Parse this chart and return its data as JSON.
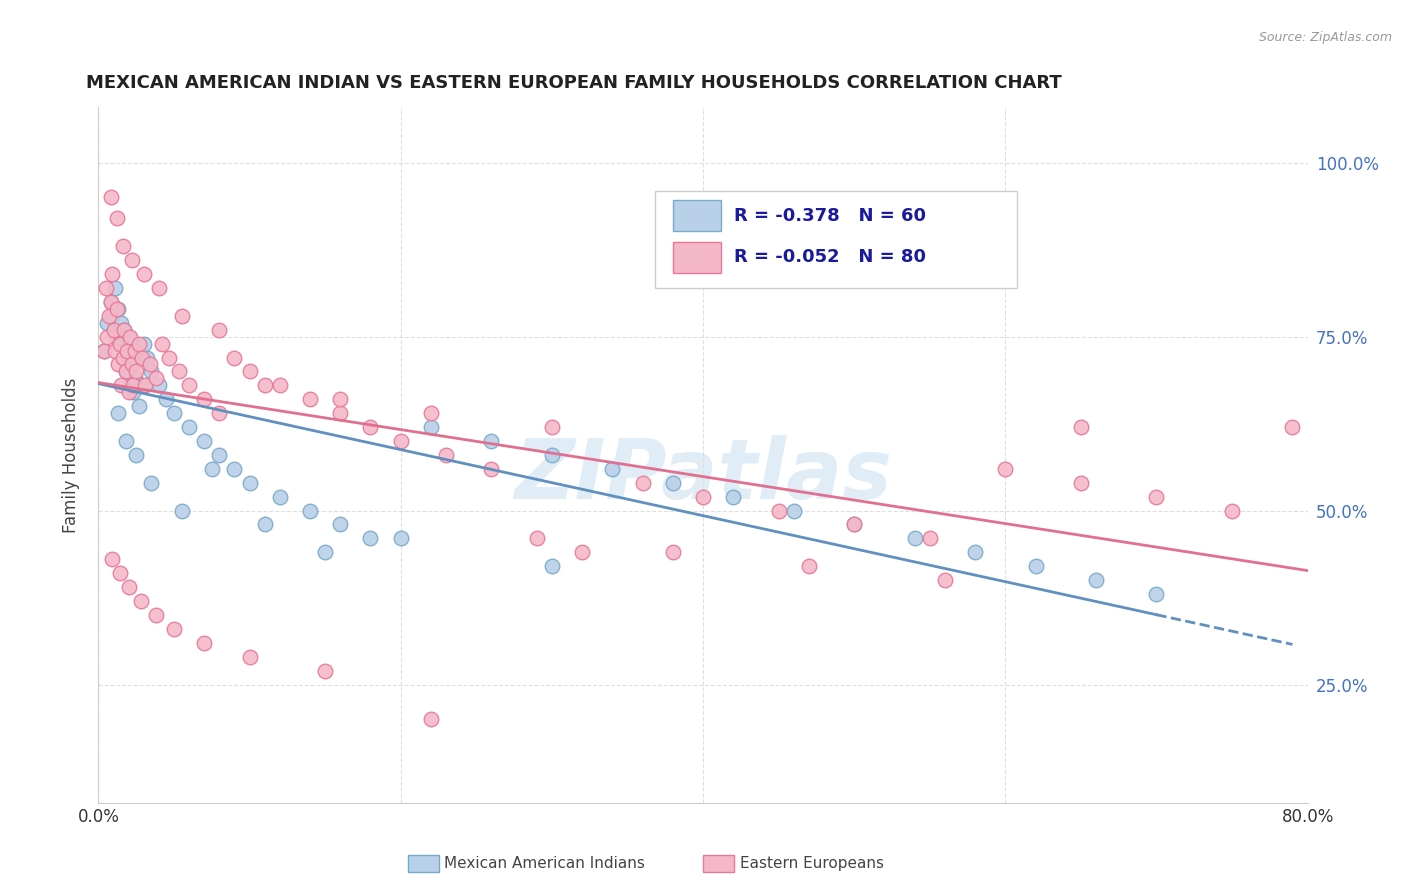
{
  "title": "MEXICAN AMERICAN INDIAN VS EASTERN EUROPEAN FAMILY HOUSEHOLDS CORRELATION CHART",
  "source": "Source: ZipAtlas.com",
  "ylabel": "Family Households",
  "legend_blue_R": "R = -0.378",
  "legend_blue_N": "N = 60",
  "legend_pink_R": "R = -0.052",
  "legend_pink_N": "N = 80",
  "legend_blue_label": "Mexican American Indians",
  "legend_pink_label": "Eastern Europeans",
  "blue_fill": "#b8d0e8",
  "blue_edge": "#7aaaca",
  "pink_fill": "#f4b8c8",
  "pink_edge": "#e87898",
  "blue_line": "#6090c0",
  "pink_line": "#e07090",
  "right_axis_color": "#4472c4",
  "watermark": "ZIPatlas",
  "watermark_color": "#cce0f0",
  "grid_color": "#d8d8d8",
  "title_color": "#222222",
  "source_color": "#999999",
  "xlim": [
    0.0,
    0.8
  ],
  "ylim": [
    0.08,
    1.08
  ],
  "blue_x": [
    0.004,
    0.006,
    0.008,
    0.009,
    0.01,
    0.011,
    0.012,
    0.013,
    0.014,
    0.015,
    0.016,
    0.017,
    0.018,
    0.019,
    0.02,
    0.021,
    0.022,
    0.023,
    0.024,
    0.025,
    0.027,
    0.028,
    0.03,
    0.032,
    0.035,
    0.04,
    0.045,
    0.05,
    0.06,
    0.07,
    0.08,
    0.09,
    0.1,
    0.12,
    0.14,
    0.16,
    0.18,
    0.22,
    0.26,
    0.3,
    0.34,
    0.38,
    0.42,
    0.46,
    0.5,
    0.54,
    0.58,
    0.62,
    0.66,
    0.7,
    0.013,
    0.018,
    0.025,
    0.035,
    0.055,
    0.075,
    0.11,
    0.15,
    0.2,
    0.3
  ],
  "blue_y": [
    0.73,
    0.77,
    0.8,
    0.78,
    0.76,
    0.82,
    0.75,
    0.79,
    0.74,
    0.77,
    0.72,
    0.76,
    0.7,
    0.73,
    0.75,
    0.68,
    0.71,
    0.67,
    0.69,
    0.72,
    0.65,
    0.68,
    0.74,
    0.72,
    0.7,
    0.68,
    0.66,
    0.64,
    0.62,
    0.6,
    0.58,
    0.56,
    0.54,
    0.52,
    0.5,
    0.48,
    0.46,
    0.62,
    0.6,
    0.58,
    0.56,
    0.54,
    0.52,
    0.5,
    0.48,
    0.46,
    0.44,
    0.42,
    0.4,
    0.38,
    0.64,
    0.6,
    0.58,
    0.54,
    0.5,
    0.56,
    0.48,
    0.44,
    0.46,
    0.42
  ],
  "pink_x": [
    0.004,
    0.005,
    0.006,
    0.007,
    0.008,
    0.009,
    0.01,
    0.011,
    0.012,
    0.013,
    0.014,
    0.015,
    0.016,
    0.017,
    0.018,
    0.019,
    0.02,
    0.021,
    0.022,
    0.023,
    0.024,
    0.025,
    0.027,
    0.029,
    0.031,
    0.034,
    0.038,
    0.042,
    0.047,
    0.053,
    0.06,
    0.07,
    0.08,
    0.09,
    0.1,
    0.12,
    0.14,
    0.16,
    0.18,
    0.2,
    0.23,
    0.26,
    0.29,
    0.32,
    0.36,
    0.4,
    0.45,
    0.5,
    0.55,
    0.6,
    0.65,
    0.7,
    0.75,
    0.79,
    0.008,
    0.012,
    0.016,
    0.022,
    0.03,
    0.04,
    0.055,
    0.08,
    0.11,
    0.16,
    0.22,
    0.3,
    0.38,
    0.47,
    0.56,
    0.65,
    0.009,
    0.014,
    0.02,
    0.028,
    0.038,
    0.05,
    0.07,
    0.1,
    0.15,
    0.22
  ],
  "pink_y": [
    0.73,
    0.82,
    0.75,
    0.78,
    0.8,
    0.84,
    0.76,
    0.73,
    0.79,
    0.71,
    0.74,
    0.68,
    0.72,
    0.76,
    0.7,
    0.73,
    0.67,
    0.75,
    0.71,
    0.68,
    0.73,
    0.7,
    0.74,
    0.72,
    0.68,
    0.71,
    0.69,
    0.74,
    0.72,
    0.7,
    0.68,
    0.66,
    0.64,
    0.72,
    0.7,
    0.68,
    0.66,
    0.64,
    0.62,
    0.6,
    0.58,
    0.56,
    0.46,
    0.44,
    0.54,
    0.52,
    0.5,
    0.48,
    0.46,
    0.56,
    0.54,
    0.52,
    0.5,
    0.62,
    0.95,
    0.92,
    0.88,
    0.86,
    0.84,
    0.82,
    0.78,
    0.76,
    0.68,
    0.66,
    0.64,
    0.62,
    0.44,
    0.42,
    0.4,
    0.62,
    0.43,
    0.41,
    0.39,
    0.37,
    0.35,
    0.33,
    0.31,
    0.29,
    0.27,
    0.2
  ]
}
